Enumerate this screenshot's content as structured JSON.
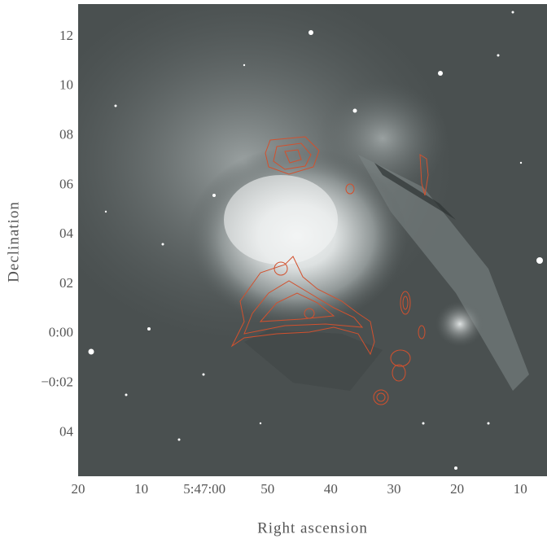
{
  "figure": {
    "x_axis": {
      "label": "Right ascension",
      "ticks": [
        "20",
        "10",
        "5:47:00",
        "50",
        "40",
        "30",
        "20",
        "10"
      ]
    },
    "y_axis": {
      "label": "Declination",
      "ticks": [
        "12",
        "10",
        "08",
        "06",
        "04",
        "02",
        "0:00",
        "−0:02",
        "04"
      ]
    }
  }
}
